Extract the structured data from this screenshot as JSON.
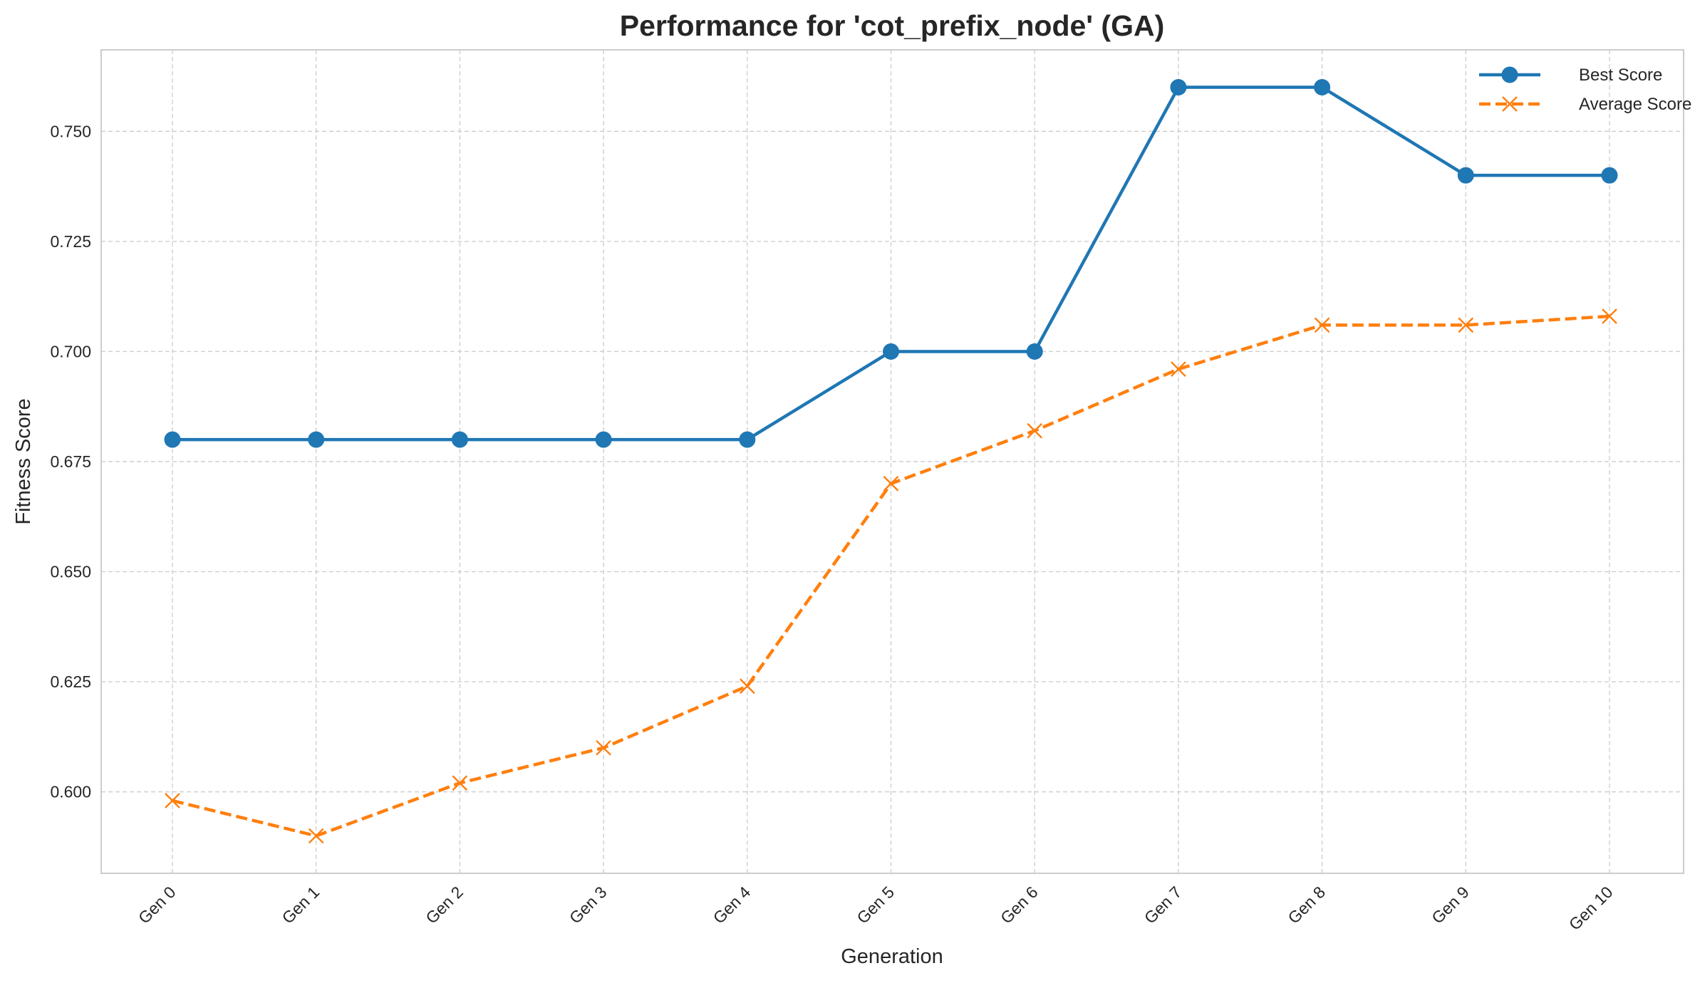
{
  "chart_data": {
    "type": "line",
    "title": "Performance for 'cot_prefix_node' (GA)",
    "xlabel": "Generation",
    "ylabel": "Fitness Score",
    "categories": [
      "Gen 0",
      "Gen 1",
      "Gen 2",
      "Gen 3",
      "Gen 4",
      "Gen 5",
      "Gen 6",
      "Gen 7",
      "Gen 8",
      "Gen 9",
      "Gen 10"
    ],
    "series": [
      {
        "name": "Best Score",
        "values": [
          0.68,
          0.68,
          0.68,
          0.68,
          0.68,
          0.7,
          0.7,
          0.76,
          0.76,
          0.74,
          0.74
        ],
        "color": "#1f77b4",
        "marker": "circle",
        "linestyle": "solid"
      },
      {
        "name": "Average Score",
        "values": [
          0.598,
          0.59,
          0.602,
          0.61,
          0.624,
          0.67,
          0.682,
          0.696,
          0.706,
          0.706,
          0.708
        ],
        "color": "#ff7f0e",
        "marker": "x",
        "linestyle": "dashed"
      }
    ],
    "yticks": [
      "0.600",
      "0.625",
      "0.650",
      "0.675",
      "0.700",
      "0.725",
      "0.750"
    ],
    "ylim": [
      0.5815,
      0.7685
    ],
    "grid": true,
    "legend_position": "top-right"
  }
}
